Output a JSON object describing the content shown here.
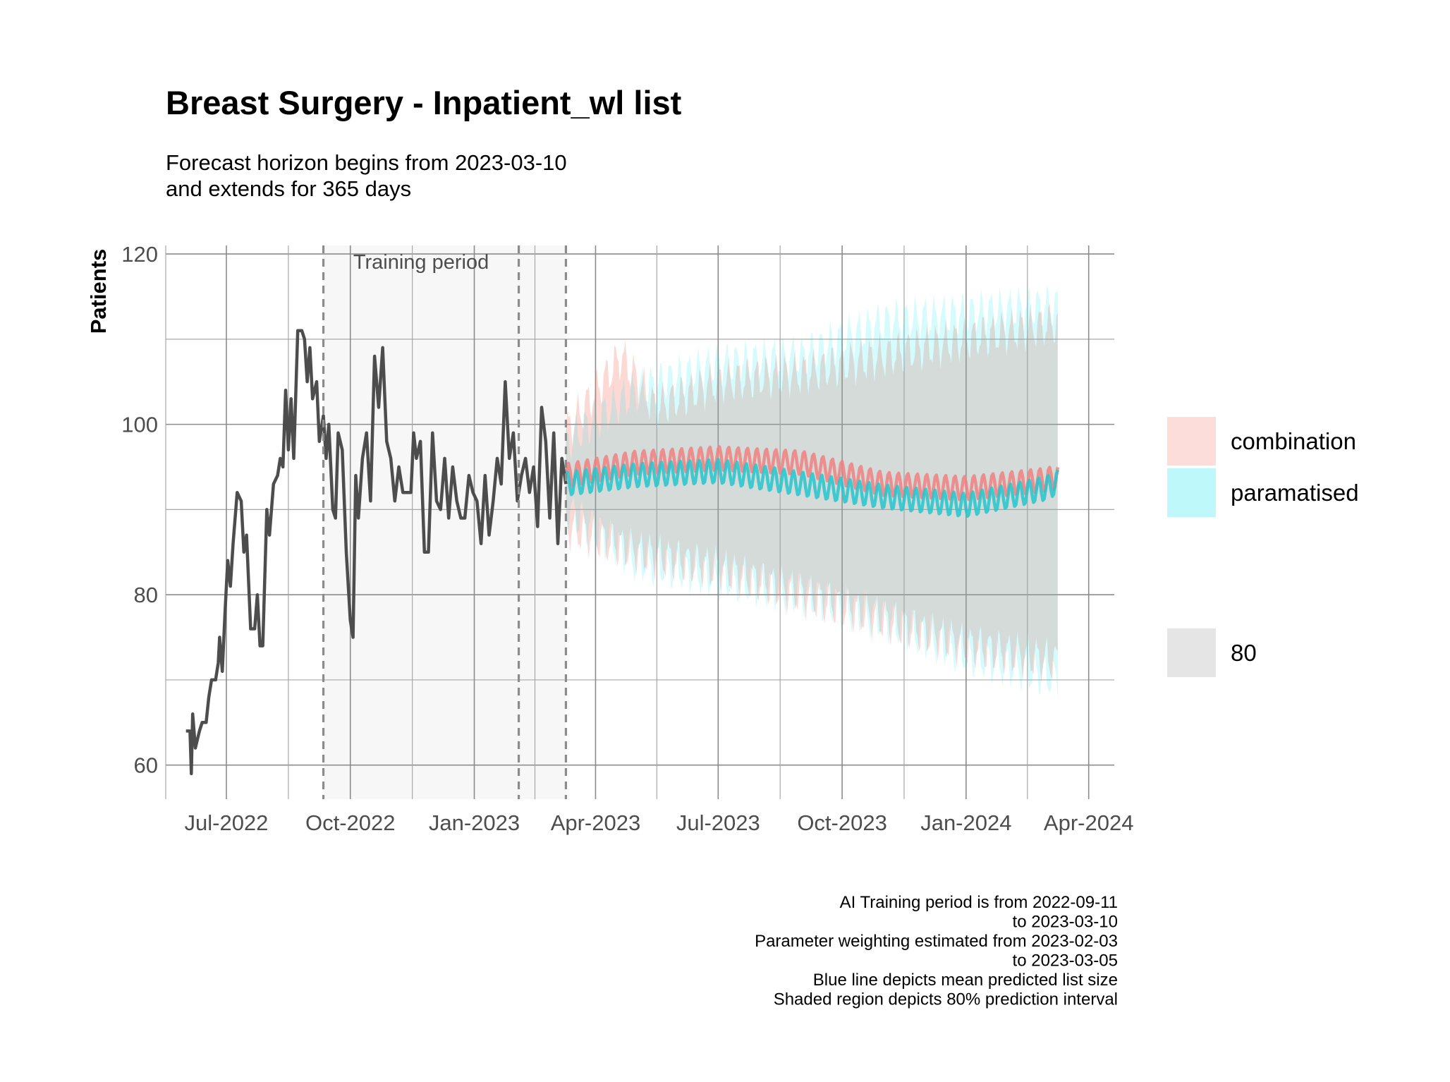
{
  "chart_data": {
    "type": "line",
    "title": "Breast Surgery - Inpatient_wl list",
    "subtitle": [
      "Forecast horizon begins from 2023-03-10",
      "and extends for 365 days"
    ],
    "xlabel": "",
    "ylabel": "Patients",
    "xlim": [
      "2022-05-17",
      "2024-04-20"
    ],
    "ylim": [
      56,
      121
    ],
    "x_ticks": [
      {
        "date": "2022-07-01",
        "label": "Jul-2022"
      },
      {
        "date": "2022-10-01",
        "label": "Oct-2022"
      },
      {
        "date": "2023-01-01",
        "label": "Jan-2023"
      },
      {
        "date": "2023-04-01",
        "label": "Apr-2023"
      },
      {
        "date": "2023-07-01",
        "label": "Jul-2023"
      },
      {
        "date": "2023-10-01",
        "label": "Oct-2023"
      },
      {
        "date": "2024-01-01",
        "label": "Jan-2024"
      },
      {
        "date": "2024-04-01",
        "label": "Apr-2024"
      }
    ],
    "y_ticks": [
      60,
      80,
      100,
      120
    ],
    "grid": true,
    "training_period": {
      "start": "2022-09-11",
      "end": "2023-03-10",
      "label": "Training period"
    },
    "vlines": [
      "2022-09-11",
      "2023-02-03",
      "2023-03-10"
    ],
    "observed": {
      "color": "#4d4d4d",
      "points": [
        [
          "2022-06-01",
          64
        ],
        [
          "2022-06-04",
          64
        ],
        [
          "2022-06-05",
          59
        ],
        [
          "2022-06-06",
          66
        ],
        [
          "2022-06-08",
          62
        ],
        [
          "2022-06-11",
          64
        ],
        [
          "2022-06-13",
          65
        ],
        [
          "2022-06-16",
          65
        ],
        [
          "2022-06-18",
          68
        ],
        [
          "2022-06-20",
          70
        ],
        [
          "2022-06-23",
          70
        ],
        [
          "2022-06-25",
          72
        ],
        [
          "2022-06-26",
          75
        ],
        [
          "2022-06-28",
          71
        ],
        [
          "2022-06-30",
          78
        ],
        [
          "2022-07-02",
          84
        ],
        [
          "2022-07-04",
          81
        ],
        [
          "2022-07-06",
          86
        ],
        [
          "2022-07-09",
          92
        ],
        [
          "2022-07-12",
          91
        ],
        [
          "2022-07-14",
          85
        ],
        [
          "2022-07-16",
          87
        ],
        [
          "2022-07-19",
          76
        ],
        [
          "2022-07-22",
          76
        ],
        [
          "2022-07-24",
          80
        ],
        [
          "2022-07-26",
          74
        ],
        [
          "2022-07-28",
          74
        ],
        [
          "2022-07-31",
          90
        ],
        [
          "2022-08-02",
          87
        ],
        [
          "2022-08-05",
          93
        ],
        [
          "2022-08-08",
          94
        ],
        [
          "2022-08-10",
          96
        ],
        [
          "2022-08-12",
          95
        ],
        [
          "2022-08-14",
          104
        ],
        [
          "2022-08-16",
          97
        ],
        [
          "2022-08-18",
          103
        ],
        [
          "2022-08-20",
          96
        ],
        [
          "2022-08-23",
          111
        ],
        [
          "2022-08-26",
          111
        ],
        [
          "2022-08-28",
          110
        ],
        [
          "2022-08-30",
          105
        ],
        [
          "2022-09-01",
          109
        ],
        [
          "2022-09-03",
          103
        ],
        [
          "2022-09-06",
          105
        ],
        [
          "2022-09-08",
          98
        ],
        [
          "2022-09-11",
          101
        ],
        [
          "2022-09-13",
          96
        ],
        [
          "2022-09-15",
          100
        ],
        [
          "2022-09-18",
          90
        ],
        [
          "2022-09-20",
          89
        ],
        [
          "2022-09-22",
          99
        ],
        [
          "2022-09-25",
          97
        ],
        [
          "2022-09-28",
          85
        ],
        [
          "2022-10-01",
          77
        ],
        [
          "2022-10-03",
          75
        ],
        [
          "2022-10-05",
          94
        ],
        [
          "2022-10-07",
          89
        ],
        [
          "2022-10-10",
          96
        ],
        [
          "2022-10-13",
          99
        ],
        [
          "2022-10-16",
          91
        ],
        [
          "2022-10-19",
          108
        ],
        [
          "2022-10-22",
          102
        ],
        [
          "2022-10-25",
          109
        ],
        [
          "2022-10-28",
          98
        ],
        [
          "2022-10-31",
          96
        ],
        [
          "2022-11-03",
          91
        ],
        [
          "2022-11-06",
          95
        ],
        [
          "2022-11-09",
          92
        ],
        [
          "2022-11-12",
          92
        ],
        [
          "2022-11-15",
          92
        ],
        [
          "2022-11-17",
          99
        ],
        [
          "2022-11-19",
          96
        ],
        [
          "2022-11-22",
          98
        ],
        [
          "2022-11-25",
          85
        ],
        [
          "2022-11-28",
          85
        ],
        [
          "2022-12-01",
          99
        ],
        [
          "2022-12-04",
          91
        ],
        [
          "2022-12-07",
          90
        ],
        [
          "2022-12-10",
          96
        ],
        [
          "2022-12-13",
          89
        ],
        [
          "2022-12-16",
          95
        ],
        [
          "2022-12-19",
          91
        ],
        [
          "2022-12-22",
          89
        ],
        [
          "2022-12-25",
          89
        ],
        [
          "2022-12-28",
          94
        ],
        [
          "2022-12-31",
          92
        ],
        [
          "2023-01-03",
          91
        ],
        [
          "2023-01-06",
          86
        ],
        [
          "2023-01-09",
          94
        ],
        [
          "2023-01-12",
          87
        ],
        [
          "2023-01-15",
          91
        ],
        [
          "2023-01-18",
          96
        ],
        [
          "2023-01-21",
          93
        ],
        [
          "2023-01-24",
          105
        ],
        [
          "2023-01-27",
          96
        ],
        [
          "2023-01-30",
          99
        ],
        [
          "2023-02-02",
          91
        ],
        [
          "2023-02-05",
          94
        ],
        [
          "2023-02-08",
          96
        ],
        [
          "2023-02-11",
          92
        ],
        [
          "2023-02-14",
          95
        ],
        [
          "2023-02-17",
          88
        ],
        [
          "2023-02-20",
          102
        ],
        [
          "2023-02-23",
          98
        ],
        [
          "2023-02-26",
          89
        ],
        [
          "2023-03-01",
          99
        ],
        [
          "2023-03-04",
          86
        ],
        [
          "2023-03-07",
          96
        ],
        [
          "2023-03-10",
          93
        ]
      ]
    },
    "forecast_start": "2023-03-10",
    "forecast_days": 365,
    "series": [
      {
        "name": "combination",
        "line_color": "#f08080",
        "fill_color": "#f8766d",
        "mean_anchors": [
          [
            "2023-03-10",
            94
          ],
          [
            "2023-05-01",
            95.5
          ],
          [
            "2023-07-01",
            96
          ],
          [
            "2023-09-01",
            95.5
          ],
          [
            "2023-11-01",
            93
          ],
          [
            "2024-01-01",
            92.5
          ],
          [
            "2024-03-01",
            93.5
          ],
          [
            "2024-03-12",
            94
          ]
        ],
        "lower_anchors": [
          [
            "2023-03-10",
            88
          ],
          [
            "2023-05-01",
            85
          ],
          [
            "2023-07-01",
            83
          ],
          [
            "2023-09-01",
            80
          ],
          [
            "2023-11-01",
            77
          ],
          [
            "2024-01-01",
            74
          ],
          [
            "2024-03-12",
            72
          ]
        ],
        "upper_anchors": [
          [
            "2023-03-10",
            99
          ],
          [
            "2023-04-20",
            108
          ],
          [
            "2023-05-15",
            102
          ],
          [
            "2023-07-01",
            105
          ],
          [
            "2023-09-01",
            106
          ],
          [
            "2023-11-01",
            108
          ],
          [
            "2024-01-01",
            110
          ],
          [
            "2024-03-12",
            112
          ]
        ]
      },
      {
        "name": "paramatised",
        "line_color": "#25c6cd",
        "fill_color": "#00e5ef",
        "mean_anchors": [
          [
            "2023-03-10",
            93
          ],
          [
            "2023-05-01",
            94
          ],
          [
            "2023-07-01",
            94.5
          ],
          [
            "2023-09-01",
            93
          ],
          [
            "2023-11-01",
            91.5
          ],
          [
            "2024-01-01",
            90.5
          ],
          [
            "2024-03-01",
            92.5
          ],
          [
            "2024-03-12",
            93.5
          ]
        ],
        "lower_anchors": [
          [
            "2023-03-10",
            90
          ],
          [
            "2023-05-01",
            84
          ],
          [
            "2023-07-01",
            82
          ],
          [
            "2023-09-01",
            80
          ],
          [
            "2023-11-01",
            77
          ],
          [
            "2024-01-01",
            73
          ],
          [
            "2024-03-12",
            70
          ]
        ],
        "upper_anchors": [
          [
            "2023-03-10",
            98
          ],
          [
            "2023-05-01",
            104
          ],
          [
            "2023-07-01",
            107
          ],
          [
            "2023-09-01",
            108
          ],
          [
            "2023-11-01",
            112
          ],
          [
            "2024-01-01",
            113
          ],
          [
            "2024-03-12",
            114
          ]
        ]
      }
    ],
    "legend": {
      "placement": "right",
      "items": [
        {
          "label": "combination",
          "color": "#f8766d"
        },
        {
          "label": "paramatised",
          "color": "#00e5ef"
        },
        {
          "label": "80",
          "color": "#e5e5e5"
        }
      ]
    },
    "caption": [
      "AI Training period is from 2022-09-11",
      "to 2023-03-10",
      "Parameter weighting estimated from 2023-02-03",
      "to 2023-03-05",
      "Blue line depicts mean predicted list size",
      "Shaded region depicts 80% prediction interval"
    ]
  }
}
